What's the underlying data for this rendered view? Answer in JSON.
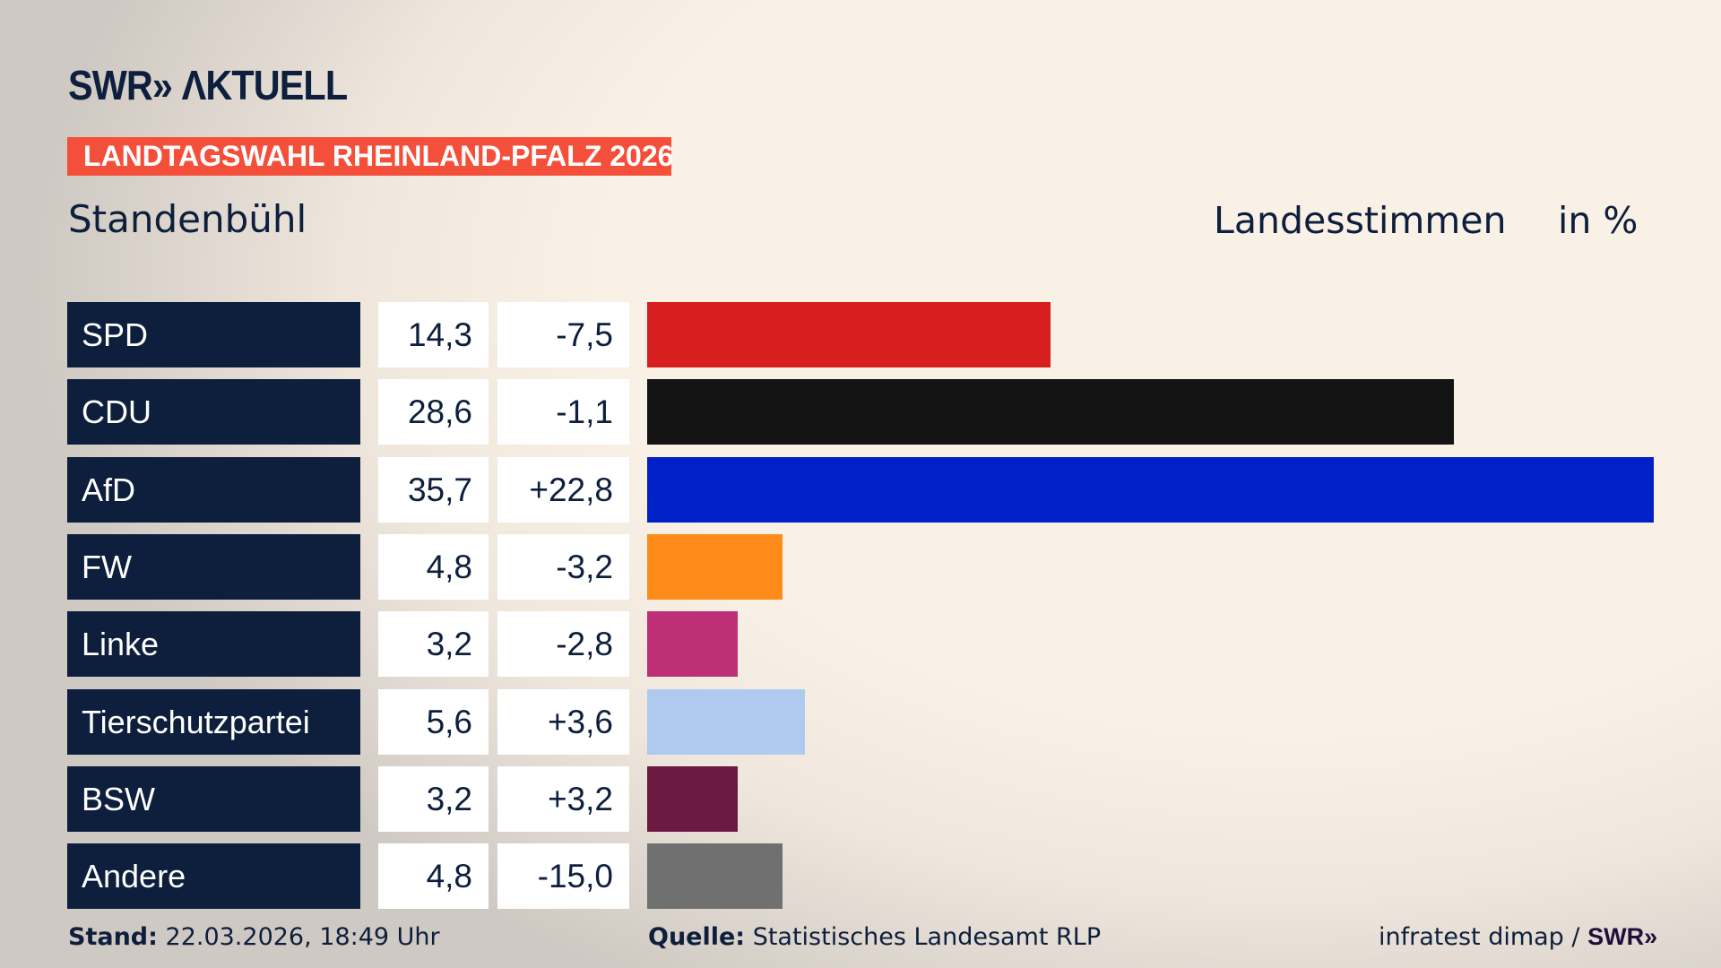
{
  "header": {
    "logo": "SWR» ΛKTUELL",
    "banner": "LANDTAGSWAHL RHEINLAND-PFALZ 2026",
    "place": "Standenbühl",
    "measure": "Landesstimmen",
    "unit": "in %"
  },
  "chart_data": {
    "type": "bar",
    "orientation": "horizontal",
    "categories": [
      "SPD",
      "CDU",
      "AfD",
      "FW",
      "Linke",
      "Tierschutzpartei",
      "BSW",
      "Andere"
    ],
    "values": [
      14.3,
      28.6,
      35.7,
      4.8,
      3.2,
      5.6,
      3.2,
      4.8
    ],
    "value_labels": [
      "14,3",
      "28,6",
      "35,7",
      "4,8",
      "3,2",
      "5,6",
      "3,2",
      "4,8"
    ],
    "diffs": [
      "-7,5",
      "-1,1",
      "+22,8",
      "-3,2",
      "-2,8",
      "+3,6",
      "+3,2",
      "-15,0"
    ],
    "colors": [
      "#d71f1f",
      "#141414",
      "#0021c8",
      "#ff8c1a",
      "#be3075",
      "#aecbef",
      "#6a1a40",
      "#707070"
    ],
    "xlim": [
      0,
      35.7
    ],
    "grid": false
  },
  "footer": {
    "stand_label": "Stand:",
    "stand_value": "22.03.2026, 18:49 Uhr",
    "source_label": "Quelle:",
    "source_value": "Statistisches Landesamt RLP",
    "credit": "infratest dimap / ",
    "credit_logo": "SWR»"
  }
}
